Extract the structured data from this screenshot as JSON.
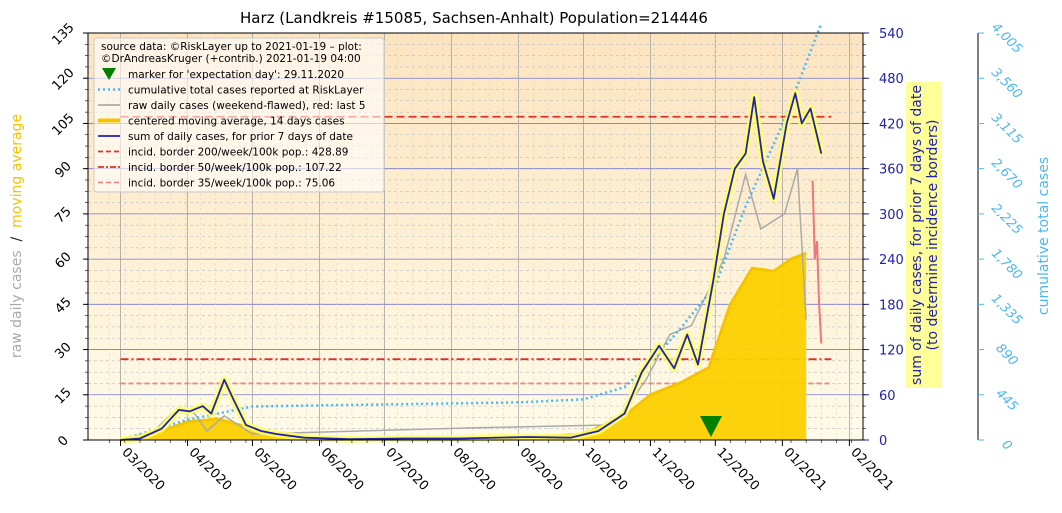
{
  "chart_data": {
    "type": "line",
    "title": "Harz (Landkreis #15085, Sachsen-Anhalt) Population=214446",
    "left_axis": {
      "label_parts": [
        {
          "text": "raw daily cases",
          "color": "#aaaaaa"
        },
        {
          "text": "  /  ",
          "color": "#222222"
        },
        {
          "text": "moving average",
          "color": "#f5c400"
        }
      ],
      "ylim": [
        0,
        135
      ],
      "ticks": [
        "0",
        "15",
        "30",
        "45",
        "60",
        "75",
        "90",
        "105",
        "120",
        "135"
      ]
    },
    "right_axis": {
      "label_line1": "sum of daily cases, for prior 7 days of date",
      "label_line2": "(to determine incidence borders)",
      "color": "#2222aa",
      "ylim": [
        0,
        540
      ],
      "ticks": [
        "0",
        "60",
        "120",
        "180",
        "240",
        "300",
        "360",
        "420",
        "480",
        "540"
      ]
    },
    "far_right_axis": {
      "label": "cumulative total cases",
      "color": "#4db8ee",
      "ylim": [
        0,
        4005
      ],
      "ticks": [
        "0",
        "445",
        "890",
        "1,335",
        "1,780",
        "2,225",
        "2,670",
        "3,115",
        "3,560",
        "4,005"
      ]
    },
    "x_axis": {
      "ticks": [
        "03/2020",
        "04/2020",
        "05/2020",
        "06/2020",
        "07/2020",
        "08/2020",
        "09/2020",
        "10/2020",
        "11/2020",
        "12/2020",
        "01/2021",
        "02/2021"
      ]
    },
    "legend": {
      "placement": "top-left",
      "header_line1": "source data: ©RiskLayer up to 2021-01-19 – plot:",
      "header_line2": "©DrAndreasKruger (+contrib.) 2021-01-19 04:00",
      "entries": [
        {
          "label": "marker for 'expectation day': 29.11.2020",
          "color": "#008000",
          "style": "triangle"
        },
        {
          "label": "cumulative total cases reported at RiskLayer",
          "color": "#4db8ee",
          "style": "dotted"
        },
        {
          "label": "raw daily cases (weekend-flawed), red: last 5",
          "color": "#aaaaaa",
          "style": "solid"
        },
        {
          "label": "centered moving average, 14 days cases",
          "color": "#f5c400",
          "style": "thick"
        },
        {
          "label": "sum of daily cases, for prior 7 days of date",
          "color": "#2222aa",
          "style": "solid"
        },
        {
          "label": "incid. border 200/week/100k pop.: 428.89",
          "color": "#dd3322",
          "style": "dashed"
        },
        {
          "label": "incid. border 50/week/100k pop.: 107.22",
          "color": "#dd3322",
          "style": "dashdot"
        },
        {
          "label": "incid. border 35/week/100k pop.: 75.06",
          "color": "#ee8888",
          "style": "dashed"
        }
      ]
    },
    "incidence_borders": [
      428.89,
      107.22,
      75.06
    ],
    "expectation_day": "2020-11-29",
    "date_range": [
      "2020-03-01",
      "2021-01-19"
    ],
    "week_sum_series": [
      {
        "x": "2020-03-01",
        "y": 0
      },
      {
        "x": "2020-03-10",
        "y": 2
      },
      {
        "x": "2020-03-20",
        "y": 15
      },
      {
        "x": "2020-03-28",
        "y": 40
      },
      {
        "x": "2020-04-02",
        "y": 38
      },
      {
        "x": "2020-04-08",
        "y": 45
      },
      {
        "x": "2020-04-12",
        "y": 35
      },
      {
        "x": "2020-04-18",
        "y": 80
      },
      {
        "x": "2020-04-22",
        "y": 55
      },
      {
        "x": "2020-04-28",
        "y": 20
      },
      {
        "x": "2020-05-05",
        "y": 12
      },
      {
        "x": "2020-05-12",
        "y": 8
      },
      {
        "x": "2020-05-25",
        "y": 3
      },
      {
        "x": "2020-06-15",
        "y": 1
      },
      {
        "x": "2020-07-10",
        "y": 2
      },
      {
        "x": "2020-08-05",
        "y": 2
      },
      {
        "x": "2020-09-05",
        "y": 4
      },
      {
        "x": "2020-09-25",
        "y": 3
      },
      {
        "x": "2020-10-08",
        "y": 12
      },
      {
        "x": "2020-10-20",
        "y": 35
      },
      {
        "x": "2020-10-28",
        "y": 90
      },
      {
        "x": "2020-11-05",
        "y": 125
      },
      {
        "x": "2020-11-12",
        "y": 95
      },
      {
        "x": "2020-11-18",
        "y": 140
      },
      {
        "x": "2020-11-23",
        "y": 100
      },
      {
        "x": "2020-11-30",
        "y": 210
      },
      {
        "x": "2020-12-05",
        "y": 300
      },
      {
        "x": "2020-12-10",
        "y": 360
      },
      {
        "x": "2020-12-15",
        "y": 380
      },
      {
        "x": "2020-12-19",
        "y": 455
      },
      {
        "x": "2020-12-23",
        "y": 370
      },
      {
        "x": "2020-12-28",
        "y": 320
      },
      {
        "x": "2021-01-03",
        "y": 420
      },
      {
        "x": "2021-01-07",
        "y": 460
      },
      {
        "x": "2021-01-10",
        "y": 420
      },
      {
        "x": "2021-01-14",
        "y": 440
      },
      {
        "x": "2021-01-19",
        "y": 380
      }
    ],
    "moving_average_series": [
      {
        "x": "2020-03-01",
        "y": 0
      },
      {
        "x": "2020-03-20",
        "y": 3
      },
      {
        "x": "2020-04-01",
        "y": 6
      },
      {
        "x": "2020-04-15",
        "y": 7
      },
      {
        "x": "2020-04-25",
        "y": 5
      },
      {
        "x": "2020-05-10",
        "y": 1.5
      },
      {
        "x": "2020-06-01",
        "y": 0.3
      },
      {
        "x": "2020-09-01",
        "y": 0.5
      },
      {
        "x": "2020-10-01",
        "y": 2
      },
      {
        "x": "2020-10-20",
        "y": 8
      },
      {
        "x": "2020-11-01",
        "y": 15
      },
      {
        "x": "2020-11-15",
        "y": 19
      },
      {
        "x": "2020-11-28",
        "y": 24
      },
      {
        "x": "2020-12-08",
        "y": 45
      },
      {
        "x": "2020-12-18",
        "y": 57
      },
      {
        "x": "2020-12-28",
        "y": 56
      },
      {
        "x": "2021-01-05",
        "y": 60
      },
      {
        "x": "2021-01-12",
        "y": 62
      }
    ],
    "cumulative_series": [
      {
        "x": "2020-03-01",
        "y": 0
      },
      {
        "x": "2020-04-01",
        "y": 200
      },
      {
        "x": "2020-05-01",
        "y": 330
      },
      {
        "x": "2020-07-01",
        "y": 350
      },
      {
        "x": "2020-09-01",
        "y": 370
      },
      {
        "x": "2020-10-01",
        "y": 400
      },
      {
        "x": "2020-10-20",
        "y": 520
      },
      {
        "x": "2020-11-01",
        "y": 760
      },
      {
        "x": "2020-11-15",
        "y": 1100
      },
      {
        "x": "2020-12-01",
        "y": 1520
      },
      {
        "x": "2020-12-15",
        "y": 2300
      },
      {
        "x": "2021-01-01",
        "y": 3100
      },
      {
        "x": "2021-01-19",
        "y": 4100
      }
    ],
    "raw_daily_series": [
      {
        "x": "2020-03-15",
        "y": 2
      },
      {
        "x": "2020-03-25",
        "y": 9
      },
      {
        "x": "2020-04-03",
        "y": 10
      },
      {
        "x": "2020-04-10",
        "y": 3
      },
      {
        "x": "2020-04-18",
        "y": 8
      },
      {
        "x": "2020-05-01",
        "y": 2
      },
      {
        "x": "2020-08-10",
        "y": 4
      },
      {
        "x": "2020-10-15",
        "y": 5
      },
      {
        "x": "2020-10-30",
        "y": 20
      },
      {
        "x": "2020-11-10",
        "y": 35
      },
      {
        "x": "2020-11-20",
        "y": 38
      },
      {
        "x": "2020-12-05",
        "y": 60
      },
      {
        "x": "2020-12-15",
        "y": 88
      },
      {
        "x": "2020-12-22",
        "y": 70
      },
      {
        "x": "2021-01-02",
        "y": 75
      },
      {
        "x": "2021-01-08",
        "y": 90
      },
      {
        "x": "2021-01-12",
        "y": 40
      }
    ],
    "raw_daily_last5_series": [
      {
        "x": "2021-01-15",
        "y": 86
      },
      {
        "x": "2021-01-16",
        "y": 60
      },
      {
        "x": "2021-01-17",
        "y": 66
      },
      {
        "x": "2021-01-18",
        "y": 45
      },
      {
        "x": "2021-01-19",
        "y": 32
      }
    ],
    "grid": true
  }
}
